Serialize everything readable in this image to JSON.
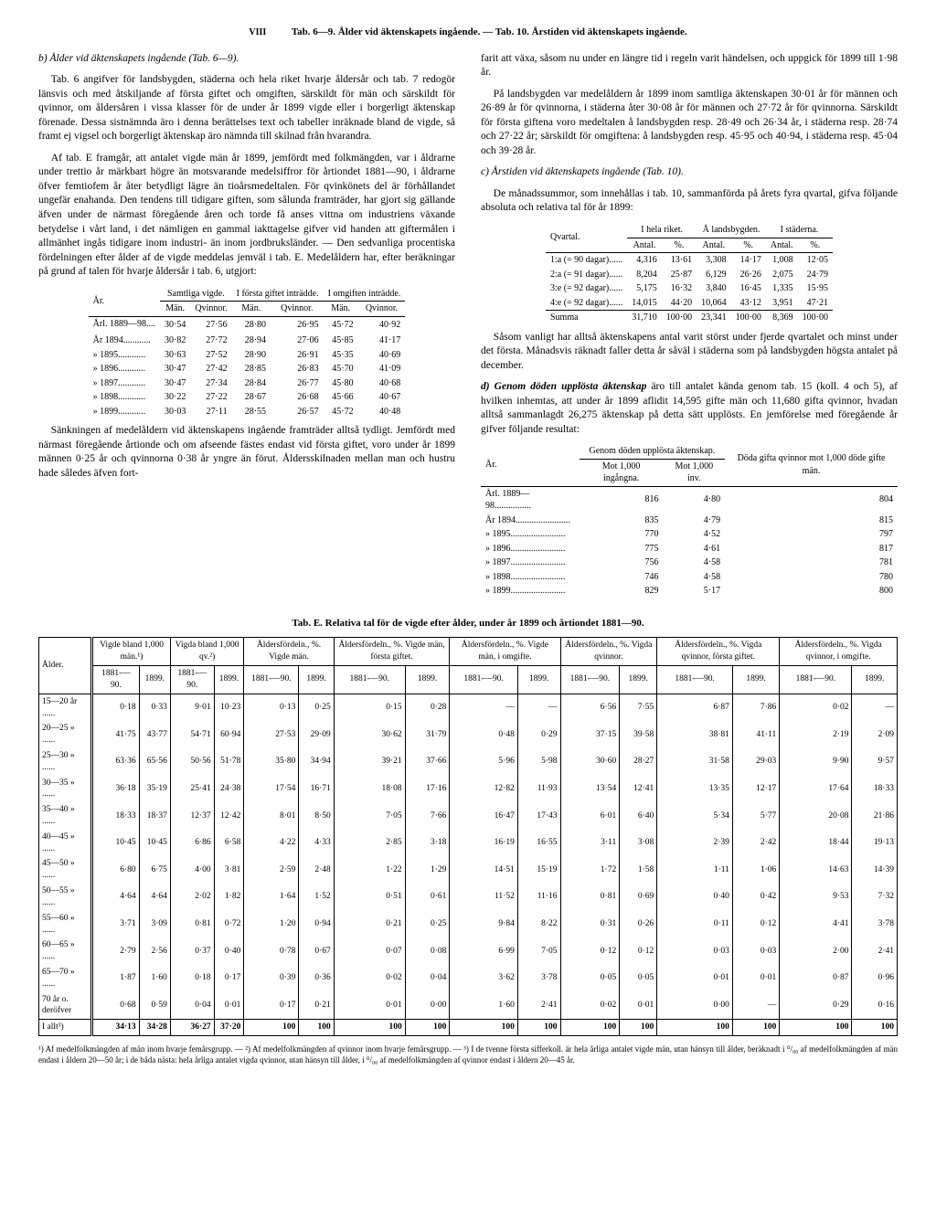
{
  "pageNum": "VIII",
  "headerLine": "Tab. 6—9. Ålder vid äktenskapets ingående. — Tab. 10. Årstiden vid äktenskapets ingående.",
  "left": {
    "h1": "b) Ålder vid äktenskapets ingående (Tab. 6—9).",
    "p1": "Tab. 6 angifver för landsbygden, städerna och hela riket hvarje åldersår och tab. 7 redogör länsvis och med åtskiljande af första giftet och omgiften, särskildt för män och särskildt för qvinnor, om åldersåren i vissa klasser för de under år 1899 vigde eller i borgerligt äktenskap förenade. Dessa sistnämnda äro i denna berättelses text och tabeller inräknade bland de vigde, så framt ej vigsel och borgerligt äktenskap äro nämnda till skilnad från hvarandra.",
    "p2": "Af tab. E framgår, att antalet vigde män år 1899, jemfördt med folkmängden, var i åldrarne under trettio år märkbart högre än motsvarande medelsiffror för årtiondet 1881—90, i åldrarne öfver femtiofem år åter betydligt lägre än tioårsmedeltalen. För qvinkönets del är förhållandet ungefär enahanda. Den tendens till tidigare giften, som sålunda framträder, har gjort sig gällande äfven under de närmast föregående åren och torde få anses vittna om industriens växande betydelse i vårt land, i det nämligen en gammal iakttagelse gifver vid handen att giftermålen i allmänhet ingås tidigare inom industri- än inom jordbruksländer. — Den sedvanliga procentiska fördelningen efter ålder af de vigde meddelas jemväl i tab. E. Medelåldern har, efter beräkningar på grund af talen för hvarje åldersår i tab. 6, utgjort:",
    "tblA": {
      "cols": [
        "År.",
        "Samtliga vigde.",
        "I första giftet inträdde.",
        "I omgiften inträdde."
      ],
      "sub": [
        "Män.",
        "Qvinnor.",
        "Män.",
        "Qvinnor.",
        "Män.",
        "Qvinnor."
      ],
      "rows": [
        [
          "Årl. 1889—98....",
          "30·54",
          "27·56",
          "28·80",
          "26·95",
          "45·72",
          "40·92"
        ],
        [
          "År 1894............",
          "30·82",
          "27·72",
          "28·94",
          "27·06",
          "45·85",
          "41·17"
        ],
        [
          "» 1895............",
          "30·63",
          "27·52",
          "28·90",
          "26·91",
          "45·35",
          "40·69"
        ],
        [
          "» 1896............",
          "30·47",
          "27·42",
          "28·85",
          "26·83",
          "45·70",
          "41·09"
        ],
        [
          "» 1897............",
          "30·47",
          "27·34",
          "28·84",
          "26·77",
          "45·80",
          "40·68"
        ],
        [
          "» 1898............",
          "30·22",
          "27·22",
          "28·67",
          "26·68",
          "45·66",
          "40·67"
        ],
        [
          "» 1899............",
          "30·03",
          "27·11",
          "28·55",
          "26·57",
          "45·72",
          "40·48"
        ]
      ]
    },
    "p3": "Sänkningen af medelåldern vid äktenskapens ingående framträder alltså tydligt. Jemfördt med närmast föregående årtionde och om afseende fästes endast vid första giftet, voro under år 1899 männen 0·25 år och qvinnorna 0·38 år yngre än förut. Åldersskilnaden mellan man och hustru hade således äfven fort-"
  },
  "right": {
    "p1": "farit att växa, såsom nu under en längre tid i regeln varit händelsen, och uppgick för 1899 till 1·98 år.",
    "p2": "På landsbygden var medelåldern år 1899 inom samtliga äktenskapen 30·01 år för männen och 26·89 år för qvinnorna, i städerna åter 30·08 år för männen och 27·72 år för qvinnorna. Särskildt för första giftena voro medeltalen å landsbygden resp. 28·49 och 26·34 år, i städerna resp. 28·74 och 27·22 år; särskildt för omgiftena: å landsbygden resp. 45·95 och 40·94, i städerna resp. 45·04 och 39·28 år.",
    "h2": "c) Årstiden vid äktenskapets ingående (Tab. 10).",
    "p3": "De månadssummor, som innehållas i tab. 10, sammanförda på årets fyra qvartal, gifva följande absoluta och relativa tal för år 1899:",
    "tblQ": {
      "hdr": [
        "Qvartal.",
        "I hela riket.",
        "Å landsbygden.",
        "I städerna."
      ],
      "sub": [
        "Antal.",
        "%.",
        "Antal.",
        "%.",
        "Antal.",
        "%."
      ],
      "rows": [
        [
          "1:a (= 90 dagar)......",
          "4,316",
          "13·61",
          "3,308",
          "14·17",
          "1,008",
          "12·05"
        ],
        [
          "2:a (= 91 dagar)......",
          "8,204",
          "25·87",
          "6,129",
          "26·26",
          "2,075",
          "24·79"
        ],
        [
          "3:e (= 92 dagar)......",
          "5,175",
          "16·32",
          "3,840",
          "16·45",
          "1,335",
          "15·95"
        ],
        [
          "4:e (= 92 dagar)......",
          "14,015",
          "44·20",
          "10,064",
          "43·12",
          "3,951",
          "47·21"
        ]
      ],
      "sum": [
        "Summa",
        "31,710",
        "100·00",
        "23,341",
        "100·00",
        "8,369",
        "100·00"
      ]
    },
    "p4": "Såsom vanligt har alltså äktenskapens antal varit störst under fjerde qvartalet och minst under det första. Månadsvis räknadt faller detta år såväl i städerna som på landsbygden högsta antalet på december.",
    "h3": "d) Genom döden upplösta äktenskap",
    "p5": "äro till antalet kända genom tab. 15 (koll. 4 och 5), af hvilken inhemtas, att under år 1899 aflidit 14,595 gifte män och 11,680 gifta qvinnor, hvadan alltså sammanlagdt 26,275 äktenskap på detta sätt upplösts. En jemförelse med föregående år gifver följande resultat:",
    "tblD": {
      "hdr": [
        "År.",
        "Genom döden upplösta äktenskap.",
        "Döda gifta qvinnor mot 1,000 döde gifte män."
      ],
      "sub": [
        "Mot 1,000 ingångna.",
        "Mot 1,000 inv."
      ],
      "rows": [
        [
          "Årl. 1889—98................",
          "816",
          "4·80",
          "804"
        ],
        [
          "År 1894........................",
          "835",
          "4·79",
          "815"
        ],
        [
          "» 1895........................",
          "770",
          "4·52",
          "797"
        ],
        [
          "» 1896........................",
          "775",
          "4·61",
          "817"
        ],
        [
          "» 1897........................",
          "756",
          "4·58",
          "781"
        ],
        [
          "» 1898........................",
          "746",
          "4·58",
          "780"
        ],
        [
          "» 1899........................",
          "829",
          "5·17",
          "800"
        ]
      ]
    }
  },
  "tabE": {
    "title": "Tab. E. Relativa tal för de vigde efter ålder, under år 1899 och årtiondet 1881—90.",
    "groups": [
      "Ålder.",
      "Vigde bland 1,000 män.¹)",
      "Vigda bland 1,000 qv.²)",
      "Åldersfördeln., %. Vigde män.",
      "Åldersfördeln., %. Vigde män, första giftet.",
      "Åldersfördeln., %. Vigde män, i omgifte.",
      "Åldersfördeln., %. Vigda qvinnor.",
      "Åldersfördeln., %. Vigda qvinnor, första giftet.",
      "Åldersfördeln., %. Vigda qvinnor, i omgifte."
    ],
    "sub": [
      "1881-—90.",
      "1899."
    ],
    "rows": [
      [
        "15—20 år ......",
        "0·18",
        "0·33",
        "9·01",
        "10·23",
        "0·13",
        "0·25",
        "0·15",
        "0·28",
        "—",
        "—",
        "6·56",
        "7·55",
        "6·87",
        "7·86",
        "0·02",
        "—"
      ],
      [
        "20—25 » ......",
        "41·75",
        "43·77",
        "54·71",
        "60·94",
        "27·53",
        "29·09",
        "30·62",
        "31·79",
        "0·48",
        "0·29",
        "37·15",
        "39·58",
        "38·81",
        "41·11",
        "2·19",
        "2·09"
      ],
      [
        "25—30 » ......",
        "63·36",
        "65·56",
        "50·56",
        "51·78",
        "35·80",
        "34·94",
        "39·21",
        "37·66",
        "5·96",
        "5·98",
        "30·60",
        "28·27",
        "31·58",
        "29·03",
        "9·90",
        "9·57"
      ],
      [
        "30—35 » ......",
        "36·18",
        "35·19",
        "25·41",
        "24·38",
        "17·54",
        "16·71",
        "18·08",
        "17·16",
        "12·82",
        "11·93",
        "13·54",
        "12·41",
        "13·35",
        "12·17",
        "17·64",
        "18·33"
      ],
      [
        "35—40 » ......",
        "18·33",
        "18·37",
        "12·37",
        "12·42",
        "8·01",
        "8·50",
        "7·05",
        "7·66",
        "16·47",
        "17·43",
        "6·01",
        "6·40",
        "5·34",
        "5·77",
        "20·08",
        "21·86"
      ],
      [
        "40—45 » ......",
        "10·45",
        "10·45",
        "6·86",
        "6·58",
        "4·22",
        "4·33",
        "2·85",
        "3·18",
        "16·19",
        "16·55",
        "3·11",
        "3·08",
        "2·39",
        "2·42",
        "18·44",
        "19·13"
      ],
      [
        "45—50 » ......",
        "6·80",
        "6·75",
        "4·00",
        "3·81",
        "2·59",
        "2·48",
        "1·22",
        "1·29",
        "14·51",
        "15·19",
        "1·72",
        "1·58",
        "1·11",
        "1·06",
        "14·63",
        "14·39"
      ],
      [
        "50—55 » ......",
        "4·64",
        "4·64",
        "2·02",
        "1·82",
        "1·64",
        "1·52",
        "0·51",
        "0·61",
        "11·52",
        "11·16",
        "0·81",
        "0·69",
        "0·40",
        "0·42",
        "9·53",
        "7·32"
      ],
      [
        "55—60 » ......",
        "3·71",
        "3·09",
        "0·81",
        "0·72",
        "1·20",
        "0·94",
        "0·21",
        "0·25",
        "9·84",
        "8·22",
        "0·31",
        "0·26",
        "0·11",
        "0·12",
        "4·41",
        "3·78"
      ],
      [
        "60—65 » ......",
        "2·79",
        "2·56",
        "0·37",
        "0·40",
        "0·78",
        "0·67",
        "0·07",
        "0·08",
        "6·99",
        "7·05",
        "0·12",
        "0·12",
        "0·03",
        "0·03",
        "2·00",
        "2·41"
      ],
      [
        "65—70 » ......",
        "1·87",
        "1·60",
        "0·18",
        "0·17",
        "0·39",
        "0·36",
        "0·02",
        "0·04",
        "3·62",
        "3·78",
        "0·05",
        "0·05",
        "0·01",
        "0·01",
        "0·87",
        "0·96"
      ],
      [
        "70 år o. deröfver",
        "0·68",
        "0·59",
        "0·04",
        "0·01",
        "0·17",
        "0·21",
        "0·01",
        "0·00",
        "1·60",
        "2·41",
        "0·02",
        "0·01",
        "0·00",
        "—",
        "0·29",
        "0·16"
      ]
    ],
    "sum": [
      "I allt³)",
      "34·13",
      "34·28",
      "36·27",
      "37·20",
      "100",
      "100",
      "100",
      "100",
      "100",
      "100",
      "100",
      "100",
      "100",
      "100",
      "100",
      "100"
    ]
  },
  "footnote": "¹) Af medelfolkmängden af män inom hvarje femårsgrupp. — ²) Af medelfolkmängden af qvinnor inom hvarje femårsgrupp. — ³) I de tvenne första sifferkoll. är hela årliga antalet vigde män, utan hänsyn till ålder, beräknadt i ⁰/₀₀ af medelfolkmängden af män endast i åldern 20—50 år; i de båda nästa: hela årliga antalet vigda qvinnor, utan hänsyn till ålder, i ⁰/₀₀ af medelfolkmängden af qvinnor endast i åldern 20—45 år."
}
